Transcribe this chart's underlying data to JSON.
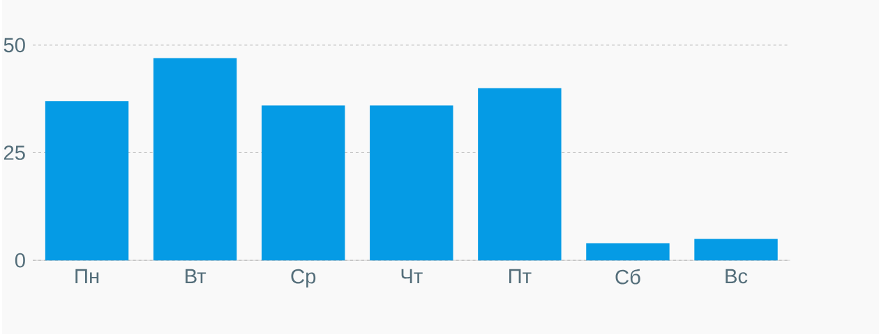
{
  "chart_data": {
    "type": "bar",
    "categories": [
      "Пн",
      "Вт",
      "Ср",
      "Чт",
      "Пт",
      "Сб",
      "Вс"
    ],
    "values": [
      37,
      47,
      36,
      36,
      40,
      4,
      5
    ],
    "color": "#059be5",
    "ylim": [
      0,
      50
    ],
    "yticks": [
      0,
      25,
      50
    ],
    "grid": "y"
  }
}
